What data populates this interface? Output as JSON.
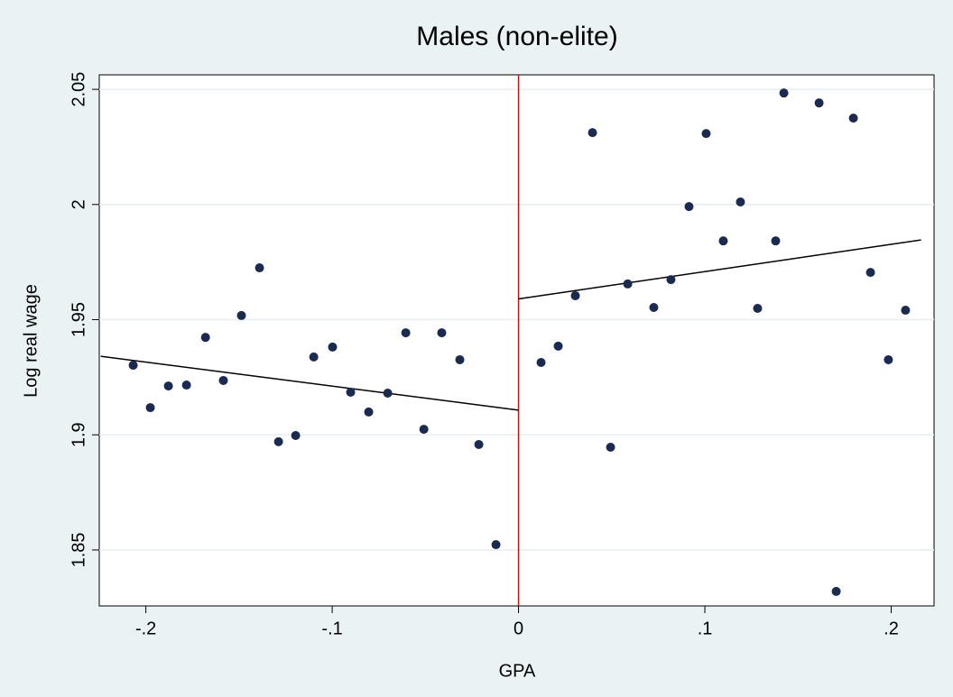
{
  "chart_data": {
    "type": "scatter",
    "title": "Males (non-elite)",
    "x_label": "GPA",
    "y_label": "Log real wage",
    "xlim": [
      -0.225,
      0.223
    ],
    "ylim": [
      1.8257,
      2.0563
    ],
    "xticks": [
      {
        "value": -0.2,
        "label": "-.2"
      },
      {
        "value": -0.1,
        "label": "-.1"
      },
      0,
      {
        "value": 0.1,
        "label": ".1"
      },
      {
        "value": 0.2,
        "label": ".2"
      }
    ],
    "yticks": [
      1.85,
      1.9,
      1.95,
      2,
      2.05
    ],
    "grid": true,
    "xline": 0,
    "xline_color": "#cc1111",
    "series": [
      {
        "color": "#1a2a50",
        "x": [
          -0.2068,
          -0.1976,
          -0.1879,
          -0.1782,
          -0.168,
          -0.1584,
          -0.1487,
          -0.139,
          -0.1288,
          -0.1196,
          -0.1099,
          -0.0998,
          -0.0901,
          -0.0804,
          -0.0702,
          -0.0605,
          -0.0508,
          -0.0412,
          -0.0315,
          -0.0213,
          -0.0121,
          0.0121,
          0.0213,
          0.0305,
          0.0397,
          0.0494,
          0.0586,
          0.0726,
          0.0818,
          0.0915,
          0.1007,
          0.1099,
          0.1191,
          0.1283,
          0.138,
          0.1424,
          0.1613,
          0.1797,
          0.1705,
          0.1889,
          0.1985,
          0.2077
        ],
        "values": [
          1.9302,
          1.9118,
          1.9212,
          1.9216,
          1.9423,
          1.9236,
          1.9518,
          1.9725,
          1.897,
          1.8997,
          1.9338,
          1.9381,
          1.9185,
          1.9099,
          1.9181,
          1.9443,
          1.9024,
          1.9443,
          1.9326,
          1.8958,
          1.8523,
          1.9314,
          1.9385,
          1.9604,
          2.0312,
          1.8946,
          1.9655,
          1.9553,
          1.9674,
          1.9991,
          2.0308,
          1.9842,
          2.0011,
          1.9549,
          1.9842,
          2.0484,
          2.0441,
          2.0375,
          1.832,
          1.9705,
          1.9326,
          1.9541
        ]
      }
    ],
    "fit_lines": [
      {
        "color": "#000000",
        "x": [
          -0.2242,
          0
        ],
        "values": [
          1.9341,
          1.9107
        ]
      },
      {
        "color": "#000000",
        "x": [
          0,
          0.216
        ],
        "values": [
          1.959,
          1.9846
        ]
      }
    ]
  }
}
